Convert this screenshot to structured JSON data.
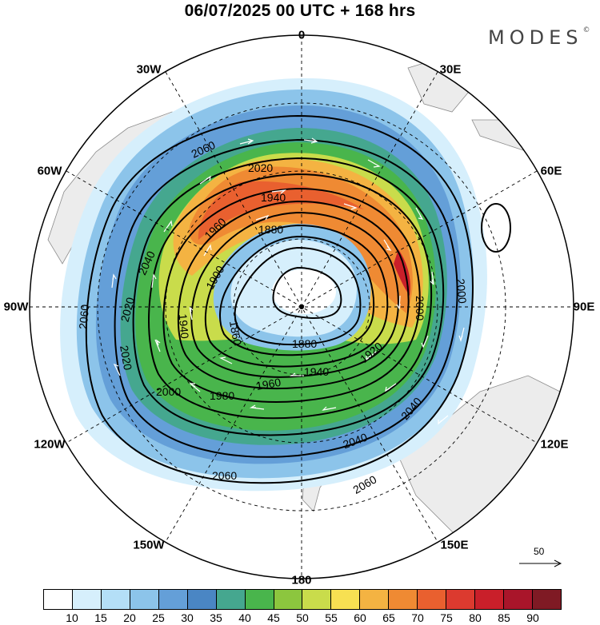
{
  "title": "06/07/2025  00 UTC  + 168 hrs",
  "brand": "MODES",
  "brand_mark": "©",
  "longitude_labels": {
    "lon_0": "0",
    "lon_30e": "30E",
    "lon_60e": "60E",
    "lon_90e": "90E",
    "lon_120e": "120E",
    "lon_150e": "150E",
    "lon_180": "180",
    "lon_150w": "150W",
    "lon_120w": "120W",
    "lon_90w": "90W",
    "lon_60w": "60W",
    "lon_30w": "30W"
  },
  "contour_labels": [
    "2060",
    "2020",
    "1940",
    "1960",
    "2040",
    "1880",
    "1900",
    "2020",
    "1940",
    "2060",
    "2000",
    "2020",
    "1860",
    "1880",
    "1920",
    "1940",
    "1960",
    "1980",
    "2000",
    "2040",
    "2040",
    "2060",
    "2060",
    "2000"
  ],
  "wind_speed_colorbar": {
    "colors": [
      "#ffffff",
      "#d6effc",
      "#b4dff7",
      "#8cc4ea",
      "#649fd8",
      "#4a86c4",
      "#45a78f",
      "#49b54c",
      "#8cc63e",
      "#c9dc4b",
      "#f7e052",
      "#f4b342",
      "#ef8a33",
      "#e9602f",
      "#dc3a2f",
      "#c91f2a",
      "#a9152a",
      "#7f1a24"
    ],
    "tick_labels": [
      "10",
      "15",
      "20",
      "25",
      "30",
      "35",
      "40",
      "45",
      "50",
      "55",
      "60",
      "65",
      "70",
      "75",
      "80",
      "85",
      "90"
    ]
  },
  "vector_reference": {
    "label": "50"
  }
}
